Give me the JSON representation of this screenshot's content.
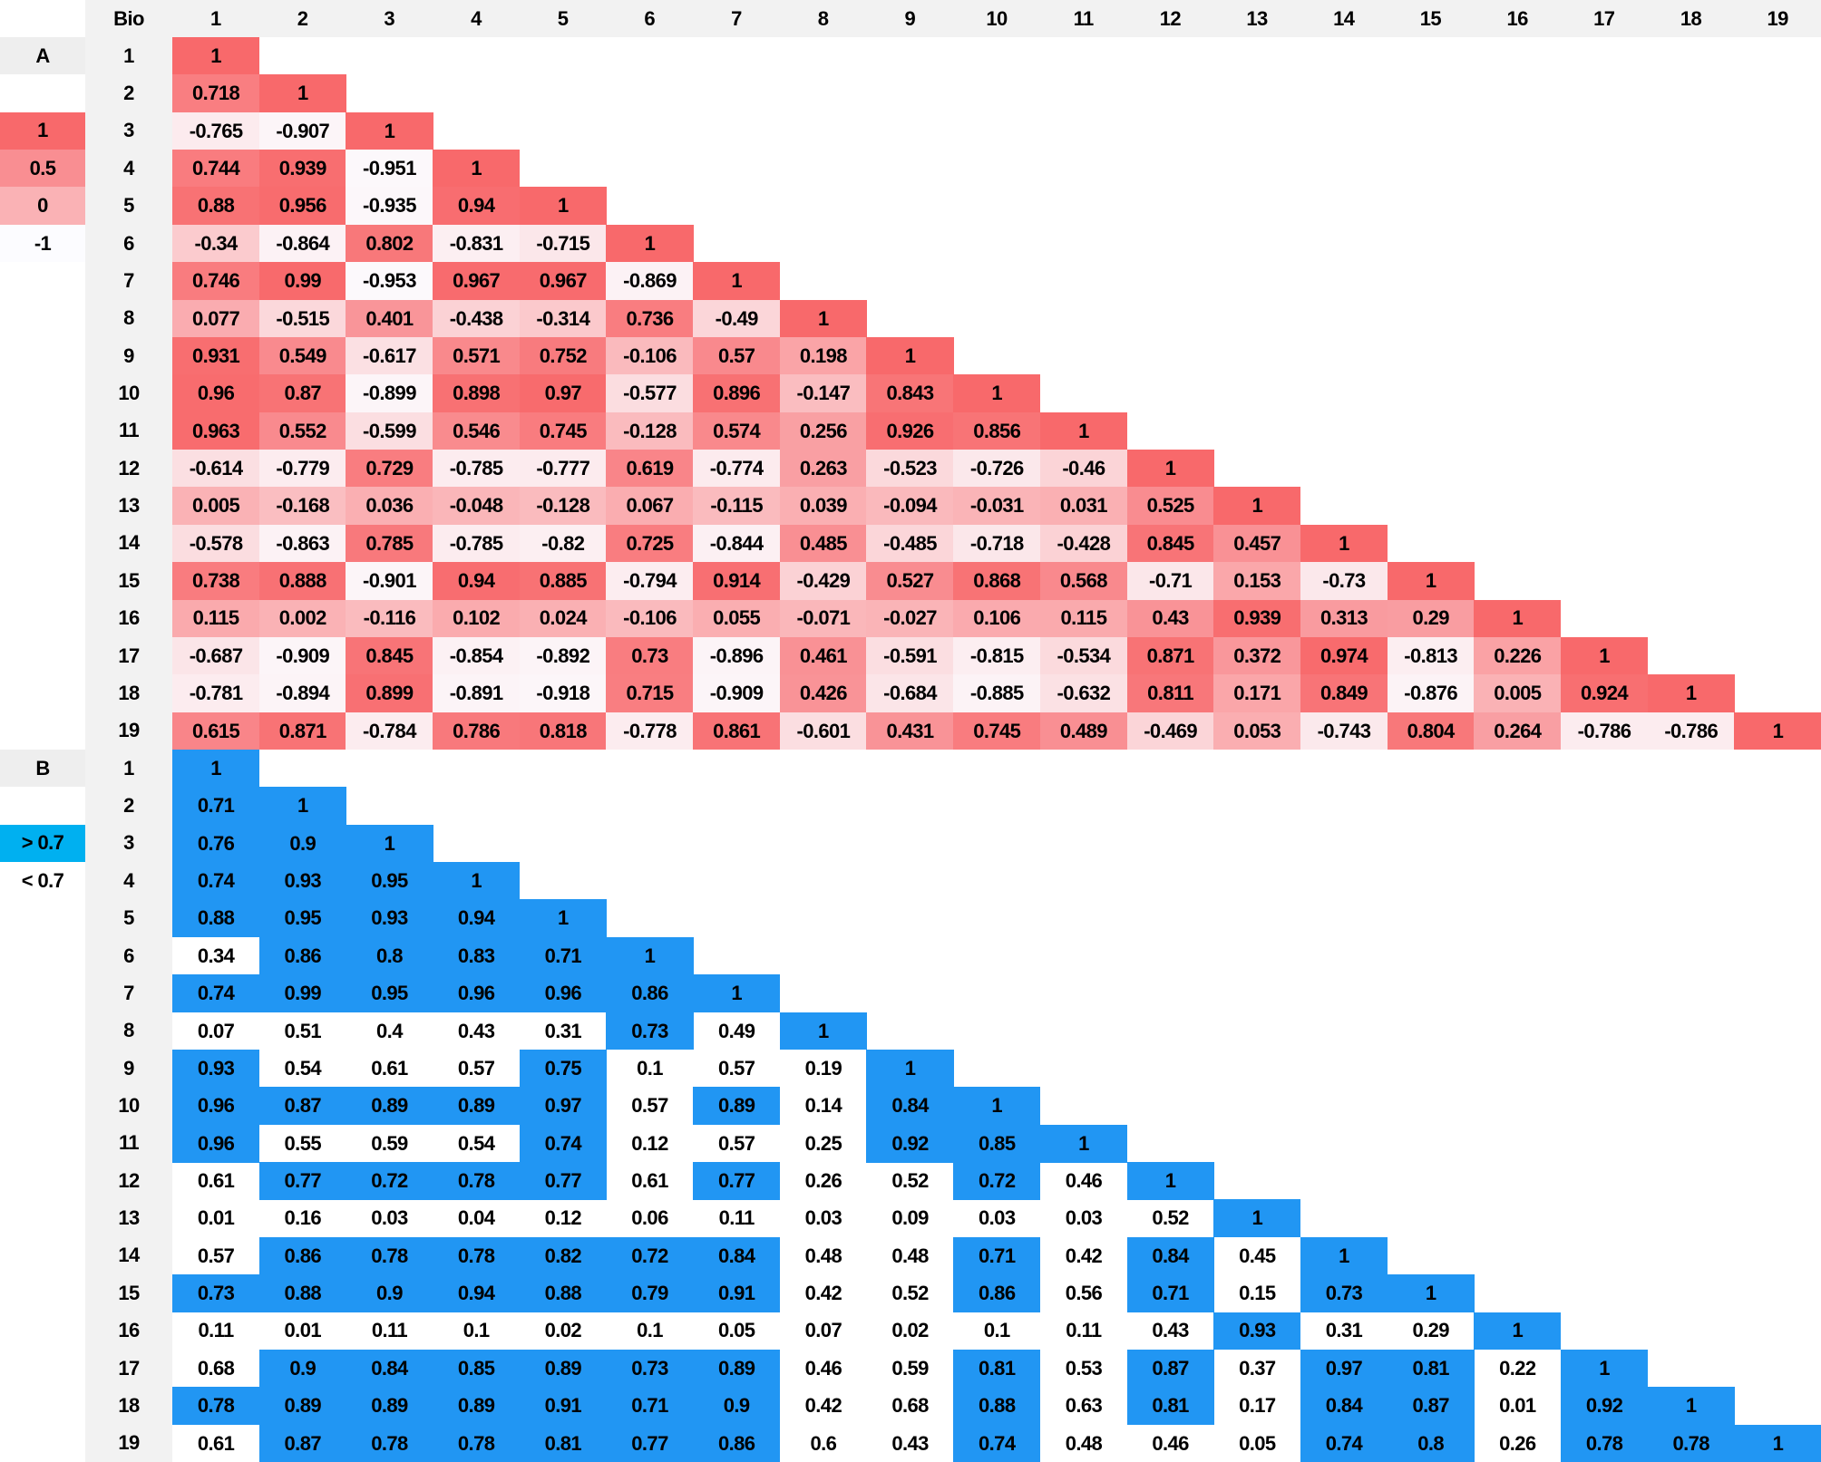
{
  "header": {
    "corner": "Bio",
    "columns": [
      "1",
      "2",
      "3",
      "4",
      "5",
      "6",
      "7",
      "8",
      "9",
      "10",
      "11",
      "12",
      "13",
      "14",
      "15",
      "16",
      "17",
      "18",
      "19"
    ]
  },
  "sections": [
    {
      "label": "A",
      "legend": [
        {
          "value": 1,
          "color": "#f8696b"
        },
        {
          "value": 0.5,
          "color": "#f98e92"
        },
        {
          "value": 0,
          "color": "#fab2b5"
        },
        {
          "value": -1,
          "color": "#fcfcff"
        }
      ],
      "rows": [
        {
          "label": "1",
          "values": [
            1
          ]
        },
        {
          "label": "2",
          "values": [
            0.718,
            1
          ]
        },
        {
          "label": "3",
          "values": [
            -0.765,
            -0.907,
            1
          ]
        },
        {
          "label": "4",
          "values": [
            0.744,
            0.939,
            -0.951,
            1
          ]
        },
        {
          "label": "5",
          "values": [
            0.88,
            0.956,
            -0.935,
            0.94,
            1
          ]
        },
        {
          "label": "6",
          "values": [
            -0.34,
            -0.864,
            0.802,
            -0.831,
            -0.715,
            1
          ]
        },
        {
          "label": "7",
          "values": [
            0.746,
            0.99,
            -0.953,
            0.967,
            0.967,
            -0.869,
            1
          ]
        },
        {
          "label": "8",
          "values": [
            0.077,
            -0.515,
            0.401,
            -0.438,
            -0.314,
            0.736,
            -0.49,
            1
          ]
        },
        {
          "label": "9",
          "values": [
            0.931,
            0.549,
            -0.617,
            0.571,
            0.752,
            -0.106,
            0.57,
            0.198,
            1
          ]
        },
        {
          "label": "10",
          "values": [
            0.96,
            0.87,
            -0.899,
            0.898,
            0.97,
            -0.577,
            0.896,
            -0.147,
            0.843,
            1
          ]
        },
        {
          "label": "11",
          "values": [
            0.963,
            0.552,
            -0.599,
            0.546,
            0.745,
            -0.128,
            0.574,
            0.256,
            0.926,
            0.856,
            1
          ]
        },
        {
          "label": "12",
          "values": [
            -0.614,
            -0.779,
            0.729,
            -0.785,
            -0.777,
            0.619,
            -0.774,
            0.263,
            -0.523,
            -0.726,
            -0.46,
            1
          ]
        },
        {
          "label": "13",
          "values": [
            0.005,
            -0.168,
            0.036,
            -0.048,
            -0.128,
            0.067,
            -0.115,
            0.039,
            -0.094,
            -0.031,
            0.031,
            0.525,
            1
          ]
        },
        {
          "label": "14",
          "values": [
            -0.578,
            -0.863,
            0.785,
            -0.785,
            -0.82,
            0.725,
            -0.844,
            0.485,
            -0.485,
            -0.718,
            -0.428,
            0.845,
            0.457,
            1
          ]
        },
        {
          "label": "15",
          "values": [
            0.738,
            0.888,
            -0.901,
            0.94,
            0.885,
            -0.794,
            0.914,
            -0.429,
            0.527,
            0.868,
            0.568,
            -0.71,
            0.153,
            -0.73,
            1
          ]
        },
        {
          "label": "16",
          "values": [
            0.115,
            0.002,
            -0.116,
            0.102,
            0.024,
            -0.106,
            0.055,
            -0.071,
            -0.027,
            0.106,
            0.115,
            0.43,
            0.939,
            0.313,
            0.29,
            1
          ]
        },
        {
          "label": "17",
          "values": [
            -0.687,
            -0.909,
            0.845,
            -0.854,
            -0.892,
            0.73,
            -0.896,
            0.461,
            -0.591,
            -0.815,
            -0.534,
            0.871,
            0.372,
            0.974,
            -0.813,
            0.226,
            1
          ]
        },
        {
          "label": "18",
          "values": [
            -0.781,
            -0.894,
            0.899,
            -0.891,
            -0.918,
            0.715,
            -0.909,
            0.426,
            -0.684,
            -0.885,
            -0.632,
            0.811,
            0.171,
            0.849,
            -0.876,
            0.005,
            0.924,
            1
          ]
        },
        {
          "label": "19",
          "values": [
            0.615,
            0.871,
            -0.784,
            0.786,
            0.818,
            -0.778,
            0.861,
            -0.601,
            0.431,
            0.745,
            0.489,
            -0.469,
            0.053,
            -0.743,
            0.804,
            0.264,
            -0.786,
            -0.786,
            1
          ]
        }
      ]
    },
    {
      "label": "B",
      "threshold": 0.7,
      "highlight_color": "#2196f3",
      "legend": [
        {
          "label": "> 0.7",
          "color": "#00b0f0"
        },
        {
          "label": "< 0.7",
          "color": "#ffffff"
        }
      ],
      "rows": [
        {
          "label": "1",
          "values": [
            1
          ]
        },
        {
          "label": "2",
          "values": [
            0.71,
            1
          ]
        },
        {
          "label": "3",
          "values": [
            0.76,
            0.9,
            1
          ]
        },
        {
          "label": "4",
          "values": [
            0.74,
            0.93,
            0.95,
            1
          ]
        },
        {
          "label": "5",
          "values": [
            0.88,
            0.95,
            0.93,
            0.94,
            1
          ]
        },
        {
          "label": "6",
          "values": [
            0.34,
            0.86,
            0.8,
            0.83,
            0.71,
            1
          ]
        },
        {
          "label": "7",
          "values": [
            0.74,
            0.99,
            0.95,
            0.96,
            0.96,
            0.86,
            1
          ]
        },
        {
          "label": "8",
          "values": [
            0.07,
            0.51,
            0.4,
            0.43,
            0.31,
            0.73,
            0.49,
            1
          ]
        },
        {
          "label": "9",
          "values": [
            0.93,
            0.54,
            0.61,
            0.57,
            0.75,
            0.1,
            0.57,
            0.19,
            1
          ]
        },
        {
          "label": "10",
          "values": [
            0.96,
            0.87,
            0.89,
            0.89,
            0.97,
            0.57,
            0.89,
            0.14,
            0.84,
            1
          ]
        },
        {
          "label": "11",
          "values": [
            0.96,
            0.55,
            0.59,
            0.54,
            0.74,
            0.12,
            0.57,
            0.25,
            0.92,
            0.85,
            1
          ]
        },
        {
          "label": "12",
          "values": [
            0.61,
            0.77,
            0.72,
            0.78,
            0.77,
            0.61,
            0.77,
            0.26,
            0.52,
            0.72,
            0.46,
            1
          ]
        },
        {
          "label": "13",
          "values": [
            0.01,
            0.16,
            0.03,
            0.04,
            0.12,
            0.06,
            0.11,
            0.03,
            0.09,
            0.03,
            0.03,
            0.52,
            1
          ]
        },
        {
          "label": "14",
          "values": [
            0.57,
            0.86,
            0.78,
            0.78,
            0.82,
            0.72,
            0.84,
            0.48,
            0.48,
            0.71,
            0.42,
            0.84,
            0.45,
            1
          ]
        },
        {
          "label": "15",
          "values": [
            0.73,
            0.88,
            0.9,
            0.94,
            0.88,
            0.79,
            0.91,
            0.42,
            0.52,
            0.86,
            0.56,
            0.71,
            0.15,
            0.73,
            1
          ]
        },
        {
          "label": "16",
          "values": [
            0.11,
            0.01,
            0.11,
            0.1,
            0.02,
            0.1,
            0.05,
            0.07,
            0.02,
            0.1,
            0.11,
            0.43,
            0.93,
            0.31,
            0.29,
            1
          ]
        },
        {
          "label": "17",
          "values": [
            0.68,
            0.9,
            0.84,
            0.85,
            0.89,
            0.73,
            0.89,
            0.46,
            0.59,
            0.81,
            0.53,
            0.87,
            0.37,
            0.97,
            0.81,
            0.22,
            1
          ]
        },
        {
          "label": "18",
          "values": [
            0.78,
            0.89,
            0.89,
            0.89,
            0.91,
            0.71,
            0.9,
            0.42,
            0.68,
            0.88,
            0.63,
            0.81,
            0.17,
            0.84,
            0.87,
            0.01,
            0.92,
            1
          ]
        },
        {
          "label": "19",
          "values": [
            0.61,
            0.87,
            0.78,
            0.78,
            0.81,
            0.77,
            0.86,
            0.6,
            0.43,
            0.74,
            0.48,
            0.46,
            0.05,
            0.74,
            0.8,
            0.26,
            0.78,
            0.78,
            1
          ]
        }
      ]
    }
  ]
}
